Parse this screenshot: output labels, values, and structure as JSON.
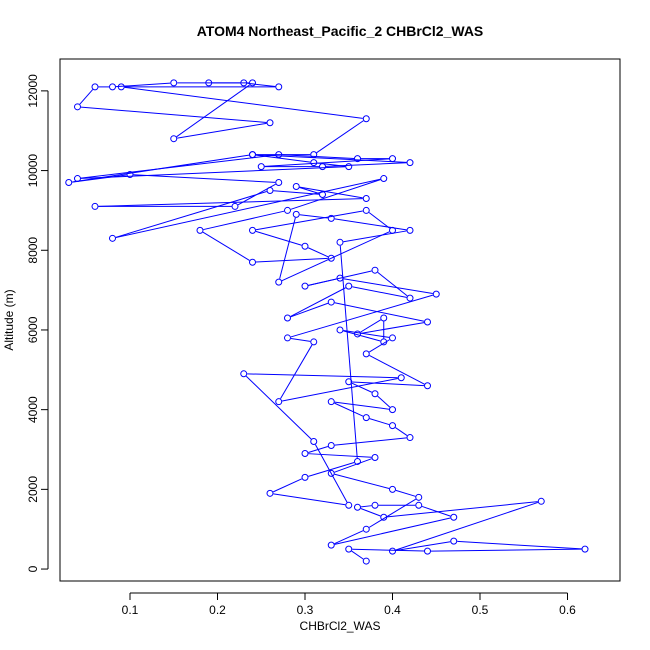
{
  "chart_data": {
    "type": "line",
    "title": "ATOM4 Northeast_Pacific_2 CHBrCl2_WAS",
    "xlabel": "CHBrCl2_WAS",
    "ylabel": "Altitude (m)",
    "xlim": [
      0.02,
      0.66
    ],
    "ylim": [
      -300,
      12800
    ],
    "xticks": [
      0.1,
      0.2,
      0.3,
      0.4,
      0.5,
      0.6
    ],
    "xtick_labels": [
      "0.1",
      "0.2",
      "0.3",
      "0.4",
      "0.5",
      "0.6"
    ],
    "yticks": [
      0,
      2000,
      4000,
      6000,
      8000,
      10000,
      12000
    ],
    "ytick_labels": [
      "0",
      "2000",
      "4000",
      "6000",
      "8000",
      "10000",
      "12000"
    ],
    "grid": false,
    "marker": "open-circle",
    "series_color": "#0000ff",
    "series": [
      {
        "x": [
          0.37,
          0.35,
          0.44,
          0.62,
          0.47,
          0.4,
          0.57,
          0.39,
          0.36,
          0.38,
          0.43,
          0.47,
          0.33,
          0.37,
          0.43,
          0.4,
          0.33,
          0.38,
          0.3,
          0.33,
          0.42,
          0.4,
          0.37,
          0.33,
          0.4,
          0.38,
          0.35,
          0.44,
          0.37,
          0.4,
          0.34,
          0.39,
          0.39,
          0.36,
          0.44,
          0.33,
          0.28,
          0.35,
          0.42,
          0.38,
          0.3,
          0.34,
          0.45,
          0.28,
          0.31,
          0.27,
          0.41,
          0.23,
          0.31,
          0.35,
          0.26,
          0.3,
          0.36,
          0.34,
          0.42,
          0.33,
          0.29,
          0.27,
          0.4,
          0.37,
          0.24,
          0.3,
          0.33,
          0.24,
          0.18,
          0.28,
          0.39,
          0.08,
          0.26,
          0.32,
          0.29,
          0.37,
          0.06,
          0.22,
          0.27,
          0.1,
          0.03,
          0.24,
          0.31,
          0.35,
          0.04,
          0.27,
          0.36,
          0.4,
          0.25,
          0.32,
          0.42,
          0.24,
          0.31,
          0.37,
          0.09,
          0.27,
          0.23,
          0.15,
          0.08,
          0.06,
          0.04,
          0.26,
          0.15,
          0.24,
          0.19
        ],
        "y": [
          200,
          500,
          450,
          500,
          700,
          450,
          1700,
          1300,
          1550,
          1600,
          1600,
          1300,
          600,
          1000,
          1800,
          2000,
          2400,
          2800,
          2900,
          3100,
          3300,
          3600,
          3800,
          4200,
          4000,
          4400,
          4700,
          4600,
          5400,
          5800,
          6000,
          5700,
          6300,
          5900,
          6200,
          6700,
          6300,
          7100,
          6800,
          7500,
          7100,
          7300,
          6900,
          5800,
          5700,
          4200,
          4800,
          4900,
          3200,
          1600,
          1900,
          2300,
          2700,
          8200,
          8500,
          8800,
          8900,
          7200,
          8500,
          9000,
          8500,
          8100,
          7800,
          7700,
          8500,
          9000,
          9800,
          8300,
          9500,
          9400,
          9600,
          9300,
          9100,
          9100,
          9700,
          9900,
          9700,
          10400,
          10200,
          10100,
          9800,
          10400,
          10300,
          10300,
          10100,
          10100,
          10200,
          10400,
          10400,
          11300,
          12100,
          12100,
          12200,
          12200,
          12100,
          12100,
          11600,
          11200,
          10800,
          12200,
          12200
        ]
      }
    ]
  }
}
